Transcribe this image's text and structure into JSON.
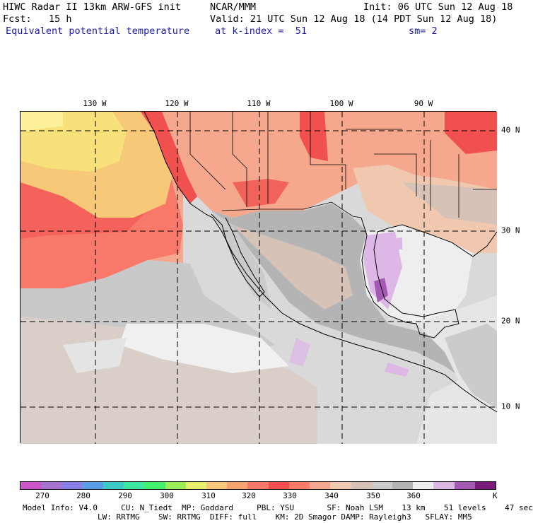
{
  "header": {
    "title_left": "HIWC Radar II 13km ARW-GFS init",
    "org": "NCAR/MMM",
    "init": "Init: 06 UTC Sun 12 Aug 18",
    "fcst": "Fcst:   15 h",
    "valid": "Valid: 21 UTC Sun 12 Aug 18 (14 PDT Sun 12 Aug 18)",
    "field": "Equivalent potential temperature",
    "level": "at k-index =  51",
    "smooth": "sm= 2"
  },
  "map": {
    "lon_labels": [
      "130 W",
      "120 W",
      "110 W",
      "100 W",
      "90 W"
    ],
    "lat_labels": [
      "40 N",
      "30 N",
      "20 N",
      "10 N"
    ],
    "land_color": "#c9c9c9",
    "ocean_color": "#e6e6e6"
  },
  "colorbar": {
    "colors": [
      "#cc55cc",
      "#a673d0",
      "#8a7ee8",
      "#5a9ee8",
      "#3ec8c8",
      "#3ee6a0",
      "#46ee6e",
      "#9aee5a",
      "#e8ee6e",
      "#f6c878",
      "#f8a46e",
      "#f8786a",
      "#f0504e",
      "#f87c66",
      "#f6a88e",
      "#f0c8b0",
      "#d6c2b6",
      "#cbcbcb",
      "#b4b4b4",
      "#eeeeee",
      "#ddb8e6",
      "#a45ab4",
      "#7a1a7a"
    ],
    "tick_labels": [
      "270",
      "280",
      "290",
      "300",
      "310",
      "320",
      "330",
      "340",
      "350",
      "360"
    ],
    "unit": "K"
  },
  "footer": {
    "line1": "Model Info: V4.0     CU: N_Tiedt  MP: Goddard     PBL: YSU       SF: Noah LSM    13 km    51 levels    47 sec",
    "line2": "                LW: RRTMG    SW: RRTMG  DIFF: full    KM: 2D Smagor DAMP: Rayleigh3   SFLAY: MM5"
  }
}
